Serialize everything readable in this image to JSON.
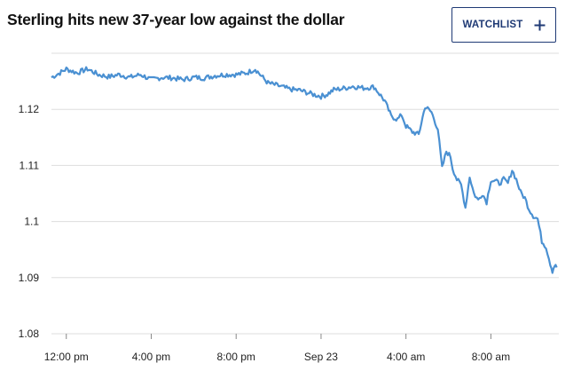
{
  "header": {
    "title": "Sterling hits new 37-year low against the dollar",
    "watchlist_label": "WATCHLIST",
    "watchlist_icon": "plus-icon"
  },
  "colors": {
    "line": "#4a90d2",
    "grid": "#dddddd",
    "button": "#1f3a75"
  },
  "chart_data": {
    "type": "line",
    "title": "Sterling hits new 37-year low against the dollar",
    "xlabel": "",
    "ylabel": "",
    "ylim": [
      1.08,
      1.13
    ],
    "grid": true,
    "legend": "none",
    "y_ticks": [
      1.08,
      1.09,
      1.1,
      1.11,
      1.12
    ],
    "y_tick_labels": [
      "1.08",
      "1.09",
      "1.1",
      "1.11",
      "1.12"
    ],
    "x_ticks": [
      0,
      4,
      8,
      12,
      16,
      20
    ],
    "x_tick_labels": [
      "12:00 pm",
      "4:00 pm",
      "8:00 pm",
      "Sep 23",
      "4:00 am",
      "8:00 am"
    ],
    "x_unit": "hours",
    "xlim": [
      -0.7,
      23.2
    ],
    "series": [
      {
        "x": [
          -0.7,
          -0.3,
          0,
          0.5,
          1,
          1.5,
          2,
          2.5,
          3,
          3.5,
          4,
          4.5,
          5,
          5.5,
          6,
          6.5,
          7,
          7.5,
          8,
          8.5,
          8.9,
          9.2,
          9.5,
          10,
          10.5,
          11,
          11.5,
          12,
          12.3,
          12.6,
          13,
          13.5,
          14,
          14.5,
          15,
          15.3,
          15.6,
          15.8,
          16,
          16.3,
          16.6,
          16.9,
          17.2,
          17.5,
          17.7,
          17.9,
          18.1,
          18.2,
          18.4,
          18.6,
          18.8,
          19,
          19.2,
          19.4,
          19.6,
          19.8,
          20,
          20.2,
          20.4,
          20.6,
          20.8,
          21,
          21.2,
          21.4,
          21.6,
          21.8,
          22,
          22.2,
          22.4,
          22.6,
          22.8,
          22.9,
          23.0,
          23.1
        ],
        "y": [
          1.1257,
          1.1265,
          1.1272,
          1.1265,
          1.1272,
          1.1262,
          1.1258,
          1.1262,
          1.1257,
          1.1262,
          1.1253,
          1.1257,
          1.1256,
          1.1253,
          1.1257,
          1.1256,
          1.126,
          1.1262,
          1.1262,
          1.1265,
          1.1272,
          1.1259,
          1.1247,
          1.1242,
          1.1236,
          1.1234,
          1.1228,
          1.1223,
          1.1227,
          1.1235,
          1.1237,
          1.1241,
          1.1238,
          1.124,
          1.1215,
          1.1188,
          1.1182,
          1.119,
          1.117,
          1.116,
          1.1155,
          1.1205,
          1.1195,
          1.1165,
          1.1095,
          1.1125,
          1.1116,
          1.1095,
          1.1075,
          1.1065,
          1.1025,
          1.108,
          1.105,
          1.1038,
          1.105,
          1.1035,
          1.1074,
          1.1072,
          1.1068,
          1.1075,
          1.1068,
          1.1092,
          1.1075,
          1.1052,
          1.1042,
          1.1022,
          1.101,
          1.1005,
          1.0965,
          1.0955,
          1.0925,
          1.0912,
          1.0922,
          1.0918
        ]
      }
    ]
  }
}
